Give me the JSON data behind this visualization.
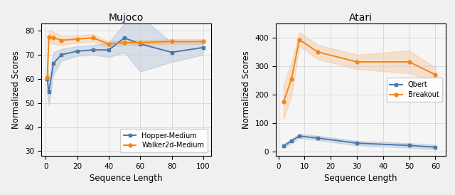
{
  "fig_bg": "#f0f0f0",
  "mujoco": {
    "title": "Mujoco",
    "xlabel": "Sequence Length",
    "ylabel": "Normalized Scores",
    "xlim": [
      -3,
      105
    ],
    "ylim": [
      28,
      83
    ],
    "yticks": [
      30,
      40,
      50,
      60,
      70,
      80
    ],
    "xticks": [
      0,
      20,
      40,
      60,
      80,
      100
    ],
    "hopper": {
      "x": [
        1,
        2,
        5,
        10,
        20,
        30,
        40,
        50,
        60,
        80,
        100
      ],
      "y": [
        60.0,
        54.5,
        66.5,
        70.0,
        71.5,
        72.0,
        72.0,
        77.0,
        74.5,
        71.0,
        73.0
      ],
      "y_low": [
        54,
        49,
        62,
        67.5,
        69.5,
        70,
        69,
        71,
        63,
        67,
        70
      ],
      "y_high": [
        66,
        60,
        71,
        72.5,
        73.5,
        74,
        75,
        83,
        86,
        75,
        76
      ],
      "color": "#4c78a8",
      "label": "Hopper-Medium",
      "marker": "s"
    },
    "walker": {
      "x": [
        1,
        2,
        5,
        10,
        20,
        30,
        40,
        50,
        60,
        80,
        100
      ],
      "y": [
        60.5,
        77.5,
        77.0,
        76.0,
        76.5,
        77.0,
        74.5,
        75.0,
        75.0,
        75.5,
        75.5
      ],
      "y_low": [
        55,
        75,
        74.5,
        74,
        75,
        75.5,
        73.5,
        74,
        74,
        74.5,
        74.5
      ],
      "y_high": [
        66,
        80,
        79.5,
        78,
        78,
        78.5,
        75.5,
        76,
        76,
        76.5,
        76.5
      ],
      "color": "#f58518",
      "label": "Walker2d-Medium",
      "marker": "o"
    }
  },
  "atari": {
    "title": "Atari",
    "xlabel": "Sequence Length",
    "ylabel": "Normalized Scores",
    "xlim": [
      -1,
      64
    ],
    "ylim": [
      -15,
      450
    ],
    "yticks": [
      0,
      100,
      200,
      300,
      400
    ],
    "xticks": [
      0,
      10,
      20,
      30,
      40,
      50,
      60
    ],
    "qbert": {
      "x": [
        2,
        5,
        8,
        15,
        30,
        50,
        60
      ],
      "y": [
        20,
        38,
        55,
        48,
        30,
        22,
        16
      ],
      "y_low": [
        14,
        30,
        48,
        40,
        22,
        14,
        8
      ],
      "y_high": [
        26,
        46,
        62,
        56,
        38,
        30,
        24
      ],
      "color": "#4c78a8",
      "label": "Qbert",
      "marker": "s"
    },
    "breakout": {
      "x": [
        2,
        5,
        8,
        15,
        30,
        50,
        60
      ],
      "y": [
        175,
        255,
        393,
        350,
        315,
        315,
        270
      ],
      "y_low": [
        115,
        195,
        370,
        325,
        290,
        275,
        245
      ],
      "y_high": [
        235,
        315,
        420,
        375,
        340,
        355,
        295
      ],
      "color": "#f58518",
      "label": "Breakout",
      "marker": "o"
    }
  }
}
